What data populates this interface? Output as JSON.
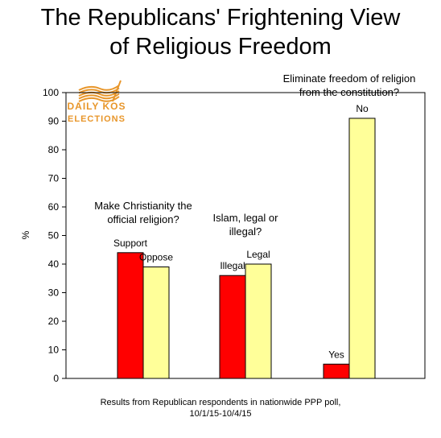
{
  "chart_data": {
    "type": "bar",
    "title_lines": [
      "The Republicans' Frightening View",
      "of Religious Freedom"
    ],
    "ylabel": "%",
    "ylim": [
      0,
      100
    ],
    "yticks": [
      0,
      10,
      20,
      30,
      40,
      50,
      60,
      70,
      80,
      90,
      100
    ],
    "groups": [
      {
        "question_lines": [
          "Make Christianity the",
          "official religion?"
        ],
        "bars": [
          {
            "label": "Support",
            "value": 44,
            "color": "#ff0000"
          },
          {
            "label": "Oppose",
            "value": 39,
            "color": "#ffff99"
          }
        ]
      },
      {
        "question_lines": [
          "Islam, legal or",
          "illegal?"
        ],
        "bars": [
          {
            "label": "Illegal",
            "value": 36,
            "color": "#ff0000"
          },
          {
            "label": "Legal",
            "value": 40,
            "color": "#ffff99"
          }
        ]
      },
      {
        "question_lines": [
          "Eliminate freedom of religion",
          "from the constitution?"
        ],
        "bars": [
          {
            "label": "Yes",
            "value": 5,
            "color": "#ff0000"
          },
          {
            "label": "No",
            "value": 91,
            "color": "#ffff99"
          }
        ]
      }
    ],
    "grid": false,
    "legend": "none"
  },
  "logo": {
    "line1": "DAILY KOS",
    "line2": "ELECTIONS",
    "color": "#e8962a"
  },
  "footnote_lines": [
    "Results from Republican respondents in nationwide PPP poll,",
    "10/1/15-10/4/15"
  ]
}
